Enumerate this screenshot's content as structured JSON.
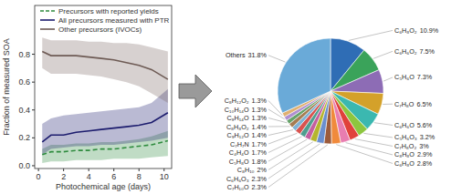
{
  "chart_data": [
    {
      "type": "line",
      "x_label": "Photochemical age (days)",
      "y_label": "Fraction of measured SOA",
      "x": [
        0.3,
        1,
        2,
        3,
        4,
        5,
        6,
        7,
        8,
        9,
        10.3
      ],
      "xlim": [
        -0.3,
        10.6
      ],
      "ylim": [
        -0.02,
        1.15
      ],
      "xticks": [
        0,
        2,
        4,
        6,
        8,
        10
      ],
      "yticks": [
        {
          "value": 0,
          "label": "0.0"
        },
        0.2,
        0.4,
        0.6,
        0.8
      ],
      "legend": "upper left",
      "grid": false,
      "series": [
        {
          "name": "Precursors with reported yields",
          "color": "#2e8b3e",
          "line_style": "dashed",
          "values": [
            0.08,
            0.1,
            0.1,
            0.11,
            0.11,
            0.12,
            0.12,
            0.13,
            0.14,
            0.15,
            0.18
          ],
          "lower": [
            0.02,
            0.03,
            0.03,
            0.04,
            0.04,
            0.04,
            0.05,
            0.05,
            0.05,
            0.06,
            0.07
          ],
          "upper": [
            0.12,
            0.15,
            0.15,
            0.16,
            0.16,
            0.17,
            0.17,
            0.18,
            0.19,
            0.21,
            0.25
          ]
        },
        {
          "name": "All precursors measured with PTR",
          "color": "#1c1c6e",
          "line_style": "solid",
          "values": [
            0.17,
            0.22,
            0.22,
            0.24,
            0.25,
            0.26,
            0.27,
            0.28,
            0.29,
            0.31,
            0.38
          ],
          "lower": [
            0.08,
            0.12,
            0.13,
            0.14,
            0.14,
            0.15,
            0.15,
            0.16,
            0.17,
            0.18,
            0.2
          ],
          "upper": [
            0.3,
            0.34,
            0.36,
            0.37,
            0.38,
            0.39,
            0.4,
            0.41,
            0.42,
            0.45,
            0.55
          ]
        },
        {
          "name": "Other precursors (IVOCs)",
          "color": "#6e5b55",
          "line_style": "solid",
          "values": [
            0.82,
            0.79,
            0.79,
            0.79,
            0.78,
            0.77,
            0.76,
            0.74,
            0.72,
            0.69,
            0.62
          ],
          "lower": [
            0.7,
            0.66,
            0.66,
            0.66,
            0.65,
            0.64,
            0.62,
            0.6,
            0.57,
            0.52,
            0.45
          ],
          "upper": [
            0.92,
            0.9,
            0.9,
            0.9,
            0.89,
            0.89,
            0.88,
            0.88,
            0.87,
            0.85,
            0.82
          ]
        }
      ]
    },
    {
      "type": "pie",
      "categories": [
        "C₆H₈O₂",
        "C₆H₆O₂",
        "C₅H₆O",
        "C₇H₈O",
        "C₆H₆O",
        "C₅H₆O₃",
        "C₇H₈O₂",
        "C₈H₈O",
        "C₆H₈O",
        "C₇H₁₀O",
        "C₆H₆O₃",
        "C₈H₁₀",
        "C₅H₈O",
        "C₄H₄O",
        "C₇H₇N",
        "C₉H₁₂O",
        "C₈H₈O₂",
        "C₉H₁₄O",
        "C₁₀H₁₄O",
        "C₈H₁₂O₂",
        "Others"
      ],
      "values": [
        10.9,
        7.5,
        7.3,
        6.5,
        5.6,
        3.2,
        3,
        2.9,
        2.8,
        2.3,
        2.3,
        2,
        1.8,
        1.7,
        1.7,
        1.4,
        1.4,
        1.3,
        1.3,
        1.3,
        31.8
      ],
      "value_labels": [
        "10.9%",
        "7.5%",
        "7.3%",
        "6.5%",
        "5.6%",
        "3.2%",
        "3%",
        "2.9%",
        "2.8%",
        "2.3%",
        "2.3%",
        "2%",
        "1.8%",
        "1.7%",
        "1.7%",
        "1.4%",
        "1.4%",
        "1.3%",
        "1.3%",
        "1.3%",
        "31.8%"
      ],
      "colors": [
        "#2f6db5",
        "#3aa35a",
        "#8d6cb5",
        "#d4a12a",
        "#3bb8b0",
        "#8dc63f",
        "#e0413b",
        "#e87db0",
        "#f08a3c",
        "#9c5b3c",
        "#6a8fd0",
        "#b5b52e",
        "#c45fa0",
        "#4f9e8f",
        "#d9534f",
        "#7fb3d5",
        "#a67c52",
        "#66a36a",
        "#b08fd0",
        "#e0b070",
        "#6aaad8"
      ]
    }
  ]
}
